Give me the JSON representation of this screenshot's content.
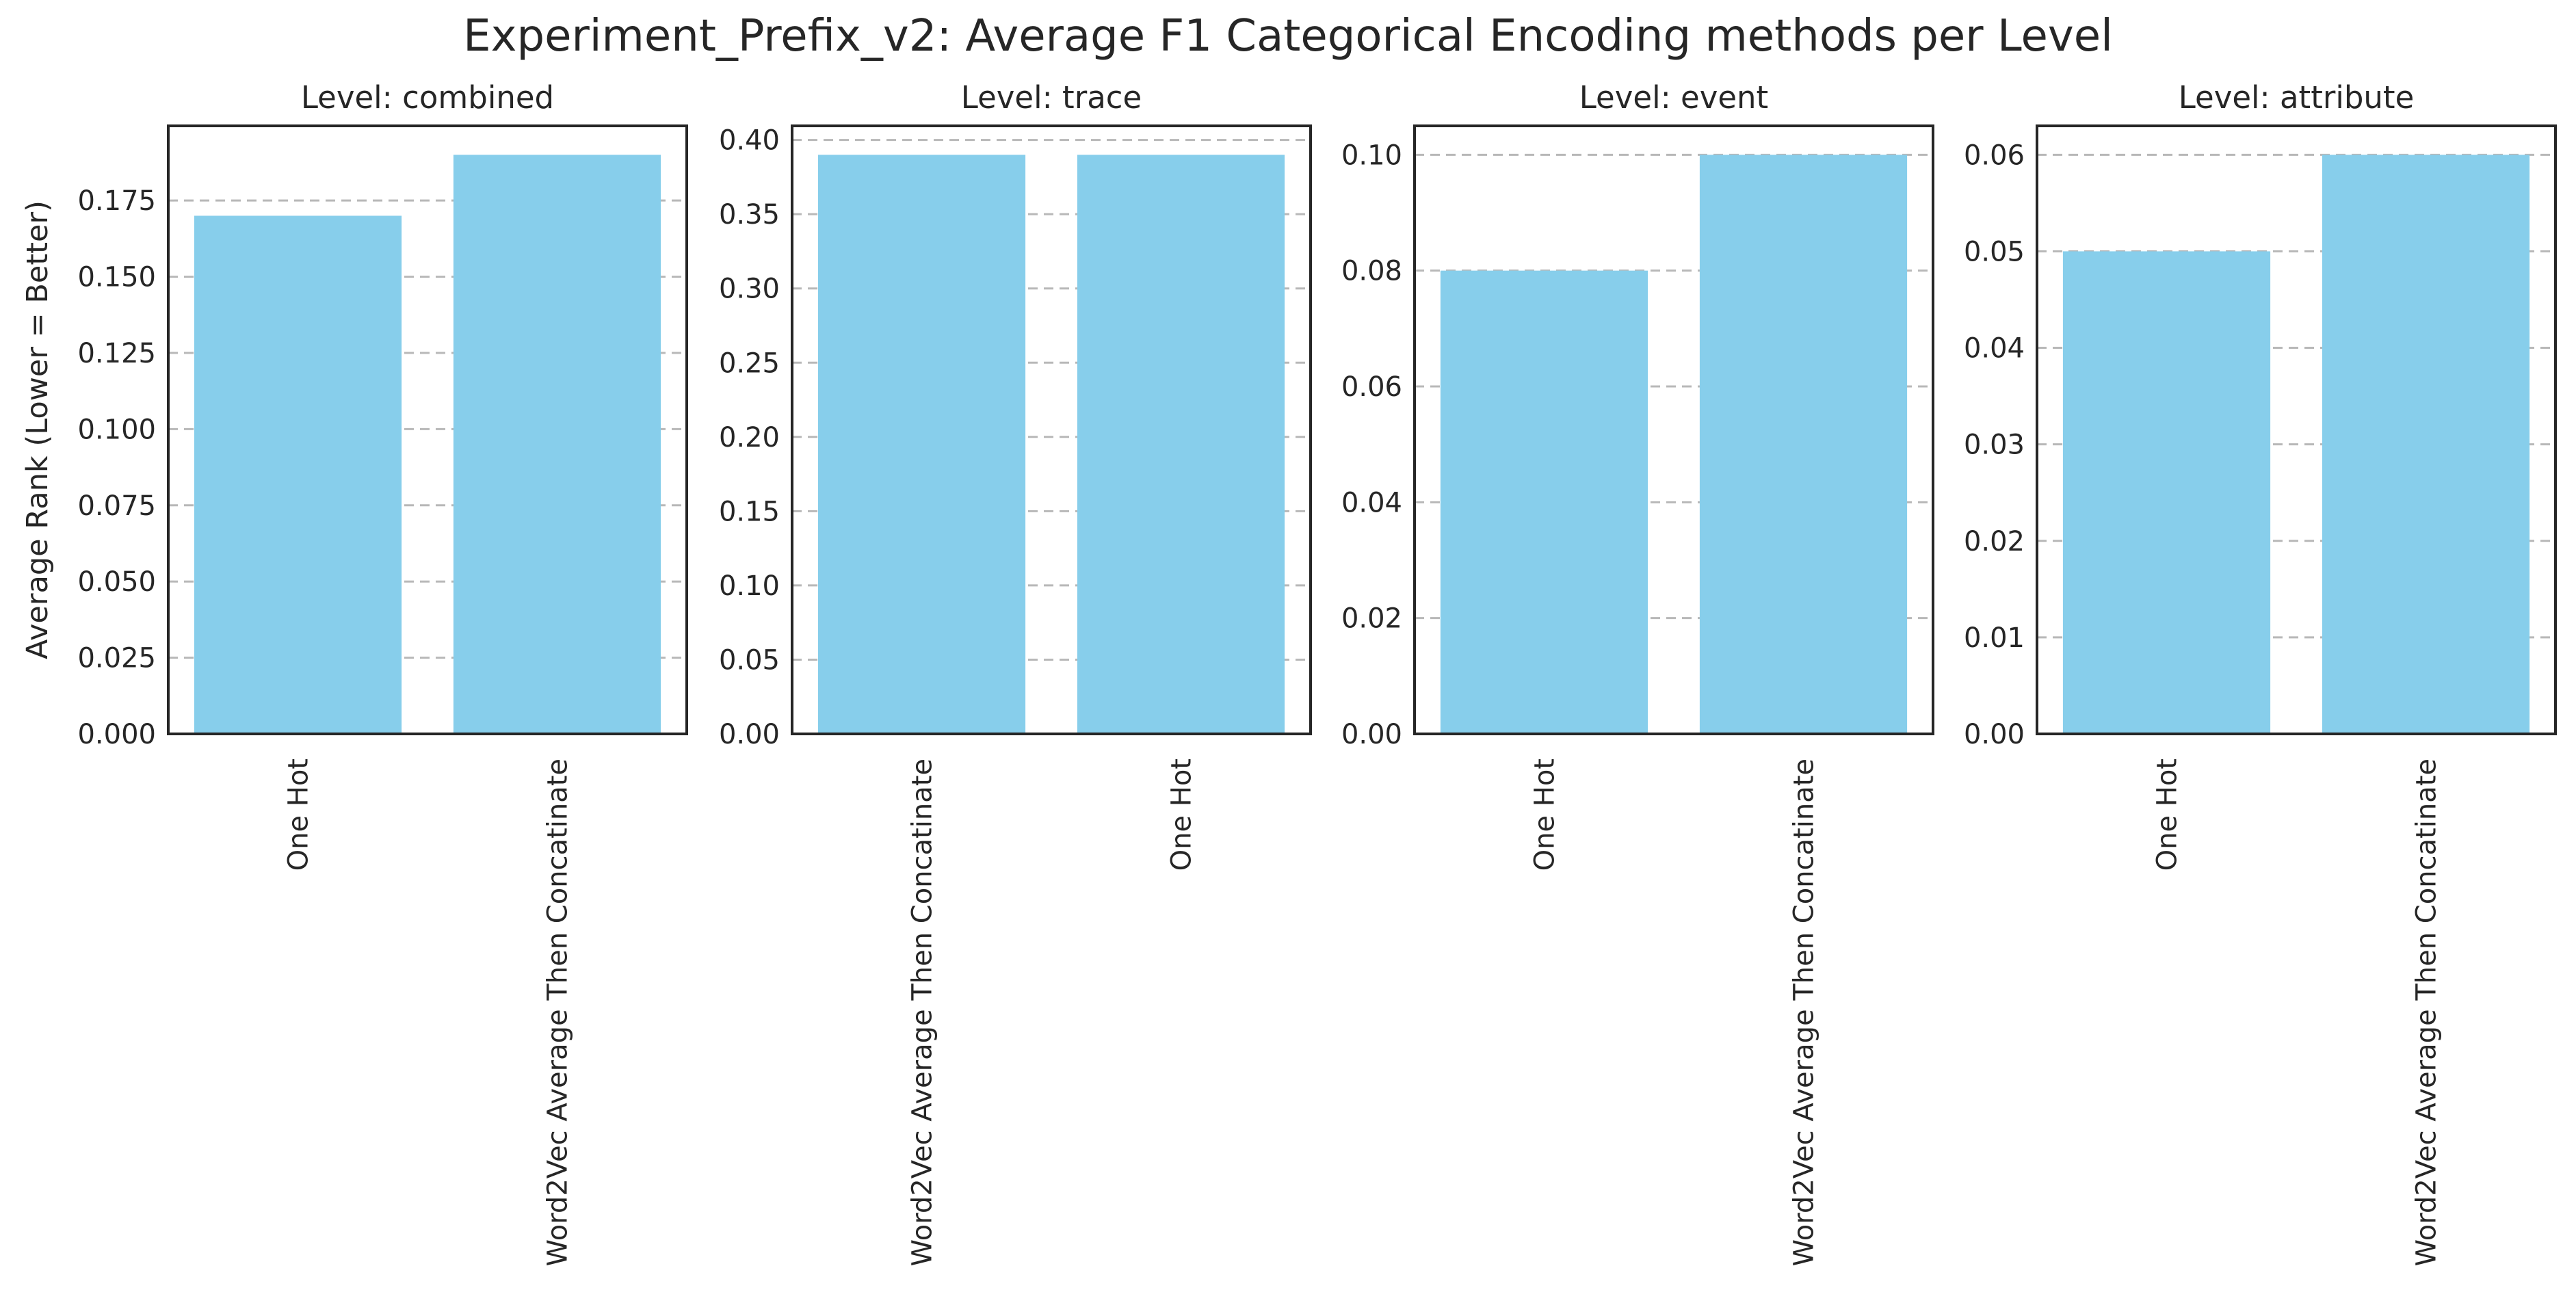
{
  "figure_title": "Experiment_Prefix_v2: Average F1 Categorical Encoding methods per Level",
  "colors": {
    "bar": "#87CEEB",
    "grid": "#b8b8b8",
    "frame": "#262626",
    "text": "#262626",
    "background": "#ffffff"
  },
  "chart_data": [
    {
      "type": "bar",
      "title": "Level: combined",
      "ylabel": "Average Rank (Lower = Better)",
      "categories": [
        "One Hot",
        "Word2Vec Average Then Concatinate"
      ],
      "values": [
        0.17,
        0.19
      ],
      "ylim": [
        0,
        0.1995
      ],
      "yticks": [
        0.0,
        0.025,
        0.05,
        0.075,
        0.1,
        0.125,
        0.15,
        0.175
      ],
      "ytick_labels": [
        "0.000",
        "0.025",
        "0.050",
        "0.075",
        "0.100",
        "0.125",
        "0.150",
        "0.175"
      ],
      "grid": "y-dashed"
    },
    {
      "type": "bar",
      "title": "Level: trace",
      "ylabel": "",
      "categories": [
        "Word2Vec Average Then Concatinate",
        "One Hot"
      ],
      "values": [
        0.39,
        0.39
      ],
      "ylim": [
        0,
        0.4095
      ],
      "yticks": [
        0.0,
        0.05,
        0.1,
        0.15,
        0.2,
        0.25,
        0.3,
        0.35,
        0.4
      ],
      "ytick_labels": [
        "0.00",
        "0.05",
        "0.10",
        "0.15",
        "0.20",
        "0.25",
        "0.30",
        "0.35",
        "0.40"
      ],
      "grid": "y-dashed"
    },
    {
      "type": "bar",
      "title": "Level: event",
      "ylabel": "",
      "categories": [
        "One Hot",
        "Word2Vec Average Then Concatinate"
      ],
      "values": [
        0.08,
        0.1
      ],
      "ylim": [
        0,
        0.105
      ],
      "yticks": [
        0.0,
        0.02,
        0.04,
        0.06,
        0.08,
        0.1
      ],
      "ytick_labels": [
        "0.00",
        "0.02",
        "0.04",
        "0.06",
        "0.08",
        "0.10"
      ],
      "grid": "y-dashed"
    },
    {
      "type": "bar",
      "title": "Level: attribute",
      "ylabel": "",
      "categories": [
        "One Hot",
        "Word2Vec Average Then Concatinate"
      ],
      "values": [
        0.05,
        0.06
      ],
      "ylim": [
        0,
        0.063
      ],
      "yticks": [
        0.0,
        0.01,
        0.02,
        0.03,
        0.04,
        0.05,
        0.06
      ],
      "ytick_labels": [
        "0.00",
        "0.01",
        "0.02",
        "0.03",
        "0.04",
        "0.05",
        "0.06"
      ],
      "grid": "y-dashed"
    }
  ]
}
